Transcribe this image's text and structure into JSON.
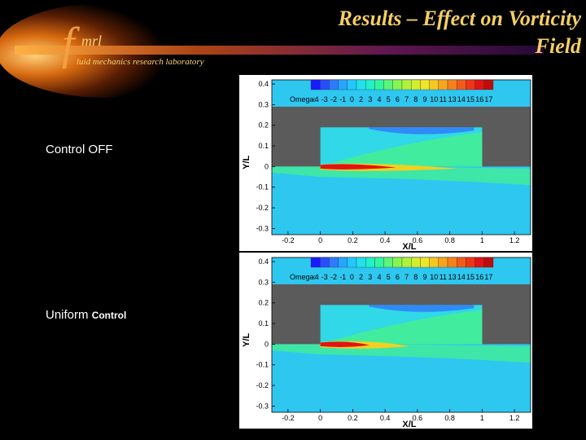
{
  "slide": {
    "title_line1": "Results – Effect on Vorticity",
    "title_line2": "Field",
    "logo": {
      "letter": "f",
      "mrl": "mrl",
      "subtitle": "luid mechanics research laboratory"
    }
  },
  "panels": [
    {
      "label": "Control OFF",
      "label_small": ""
    },
    {
      "label": "Uniform ",
      "label_small": "Control"
    }
  ],
  "plot": {
    "xlabel": "X/L",
    "ylabel": "Y/L",
    "x_ticks": [
      "-0.2",
      "0",
      "0.2",
      "0.4",
      "0.6",
      "0.8",
      "1",
      "1.2"
    ],
    "y_ticks": [
      "0.4",
      "0.3",
      "0.2",
      "0.1",
      "0",
      "-0.1",
      "-0.2",
      "-0.3"
    ],
    "legend_title": "Omega:",
    "legend_levels": [
      "-4",
      "-3",
      "-2",
      "-1",
      "0",
      "2",
      "3",
      "4",
      "5",
      "6",
      "7",
      "8",
      "9",
      "10",
      "11",
      "13",
      "14",
      "15",
      "16",
      "17"
    ],
    "legend_colors": [
      "#1a1aff",
      "#2a4cff",
      "#2f7bff",
      "#26a6ff",
      "#22c8ff",
      "#22e0ee",
      "#22f0c8",
      "#33f5a0",
      "#5cf577",
      "#86f550",
      "#aef23c",
      "#d2ee2e",
      "#efe627",
      "#f8c820",
      "#f8a41c",
      "#f6801a",
      "#f25c18",
      "#ee3616",
      "#e01414",
      "#c20a0a"
    ],
    "colors": {
      "gray": "#5b5b5b",
      "field": "#2ec7f0",
      "green": "#44f090",
      "jet_red": "#e01414"
    }
  }
}
